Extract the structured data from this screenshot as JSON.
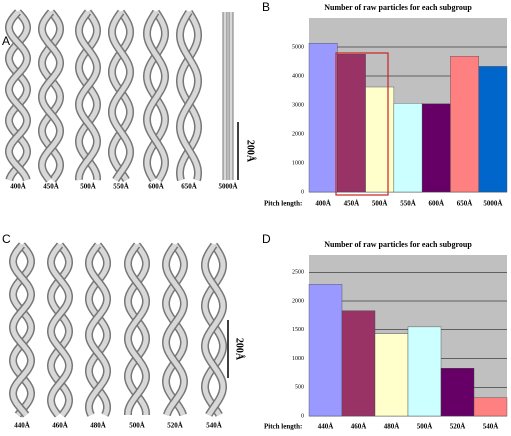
{
  "panel_labels": [
    "A",
    "B",
    "C",
    "D"
  ],
  "figures": [
    {
      "images": [
        "400Å",
        "450Å",
        "500Å",
        "550Å",
        "600Å",
        "650Å",
        "5000Å"
      ],
      "scale_label": "200Å"
    },
    {
      "images": [
        "440Å",
        "460Å",
        "480Å",
        "500Å",
        "520Å",
        "540Å"
      ],
      "scale_label": "200Å"
    }
  ],
  "chart_data": [
    {
      "type": "bar",
      "title": "Number of raw particles for each subgroup",
      "x_label": "Pitch length:",
      "categories": [
        "400Å",
        "450Å",
        "500Å",
        "550Å",
        "600Å",
        "650Å",
        "5000Å"
      ],
      "values": [
        5130,
        4750,
        3620,
        3060,
        3040,
        4680,
        4330
      ],
      "colors": [
        "#9999ff",
        "#993366",
        "#ffffcc",
        "#ccffff",
        "#660066",
        "#ff8080",
        "#0066cc"
      ],
      "ylim": [
        0,
        6000
      ],
      "yticks": [
        0,
        1000,
        2000,
        3000,
        4000,
        5000
      ],
      "grid": true
    },
    {
      "type": "bar",
      "title": "Number of raw particles for each subgroup",
      "x_label": "Pitch length:",
      "categories": [
        "440Å",
        "460Å",
        "480Å",
        "500Å",
        "520Å",
        "540Å"
      ],
      "values": [
        2290,
        1830,
        1430,
        1550,
        830,
        320
      ],
      "colors": [
        "#9999ff",
        "#993366",
        "#ffffcc",
        "#ccffff",
        "#660066",
        "#ff8080"
      ],
      "ylim": [
        0,
        2800
      ],
      "yticks": [
        0,
        500,
        1000,
        1500,
        2000,
        2500
      ],
      "grid": true
    }
  ]
}
